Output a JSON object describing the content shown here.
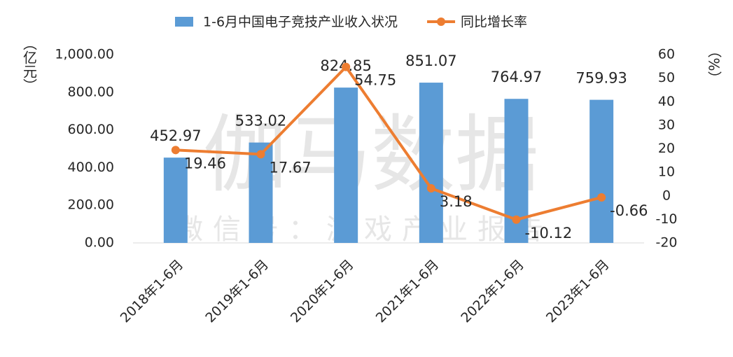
{
  "chart_data": {
    "type": "bar",
    "categories": [
      "2018年1-6月",
      "2019年1-6月",
      "2020年1-6月",
      "2021年1-6月",
      "2022年1-6月",
      "2023年1-6月"
    ],
    "series": [
      {
        "name": "1-6月中国电子竞技产业收入状况",
        "type": "bar",
        "color": "#5b9bd5",
        "values": [
          452.97,
          533.02,
          824.85,
          851.07,
          764.97,
          759.93
        ]
      },
      {
        "name": "同比增长率",
        "type": "line",
        "axis": "y2",
        "color": "#ed7d31",
        "values": [
          19.46,
          17.67,
          54.75,
          3.18,
          -10.12,
          -0.66
        ]
      }
    ],
    "ylabel": "（亿元）",
    "y2label": "（%）",
    "ylim": [
      0,
      1000
    ],
    "yticks": [
      {
        "value": 0,
        "label": "0.00"
      },
      {
        "value": 200,
        "label": "200.00"
      },
      {
        "value": 400,
        "label": "400.00"
      },
      {
        "value": 600,
        "label": "600.00"
      },
      {
        "value": 800,
        "label": "800.00"
      },
      {
        "value": 1000,
        "label": "1,000.00"
      }
    ],
    "y2lim": [
      -20,
      60
    ],
    "y2ticks": [
      -20,
      -10,
      0,
      10,
      20,
      30,
      40,
      50,
      60
    ],
    "grid": false,
    "legend": "top",
    "watermark": "伽马数据",
    "watermark_sub": "微信号：游戏产业报告"
  }
}
